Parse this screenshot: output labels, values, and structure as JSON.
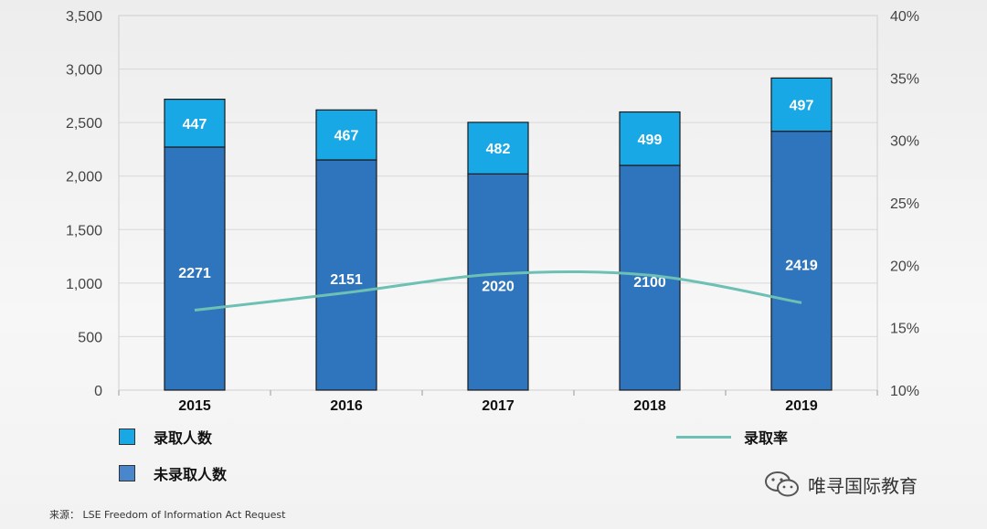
{
  "chart_data": {
    "type": "bar",
    "stacked": true,
    "categories": [
      "2015",
      "2016",
      "2017",
      "2018",
      "2019"
    ],
    "series": [
      {
        "name": "未录取人数",
        "values": [
          2271,
          2151,
          2020,
          2100,
          2419
        ],
        "color": "#2f75bd"
      },
      {
        "name": "录取人数",
        "values": [
          447,
          467,
          482,
          499,
          497
        ],
        "color": "#19a8e6"
      }
    ],
    "line_series": {
      "name": "录取率",
      "values": [
        16.4,
        17.8,
        19.3,
        19.2,
        17.0
      ],
      "color": "#6cc0b4",
      "axis": "right"
    },
    "ylim": [
      0,
      3500
    ],
    "y_ticks": [
      "0",
      "500",
      "1,000",
      "1,500",
      "2,000",
      "2,500",
      "3,000",
      "3,500"
    ],
    "y2lim": [
      10,
      40
    ],
    "y2_ticks": [
      "10%",
      "15%",
      "20%",
      "25%",
      "30%",
      "35%",
      "40%"
    ],
    "grid": true
  },
  "legend": {
    "admitted": "录取人数",
    "rejected": "未录取人数",
    "rate": "录取率"
  },
  "source": "来源： LSE Freedom of Information Act Request",
  "watermark_text": "唯寻国际教育"
}
